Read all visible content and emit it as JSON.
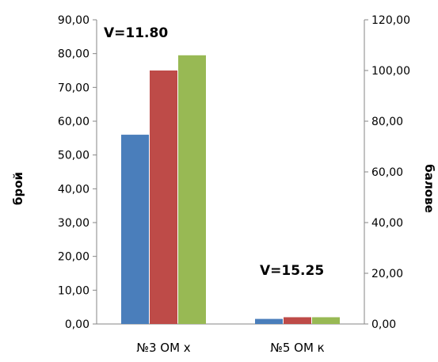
{
  "chart_data": {
    "type": "bar",
    "categories": [
      "№3 ОМ х",
      "№5 ОМ к"
    ],
    "series": [
      {
        "values": [
          56,
          1.5
        ],
        "color": "#4a7ebb"
      },
      {
        "values": [
          75,
          2.0
        ],
        "color": "#be4b48"
      },
      {
        "values": [
          79.5,
          2.0
        ],
        "color": "#98b954"
      }
    ],
    "ylabel": "брой",
    "y2label": "балове",
    "ylim": [
      0,
      90
    ],
    "y2lim": [
      0,
      120
    ],
    "yticks": [
      "0,00",
      "10,00",
      "20,00",
      "30,00",
      "40,00",
      "50,00",
      "60,00",
      "70,00",
      "80,00",
      "90,00"
    ],
    "y2ticks": [
      "0,00",
      "20,00",
      "40,00",
      "60,00",
      "80,00",
      "100,00",
      "120,00"
    ],
    "annotations": [
      "V=11.80",
      "V=15.25"
    ],
    "grid": false,
    "legend": "none"
  }
}
